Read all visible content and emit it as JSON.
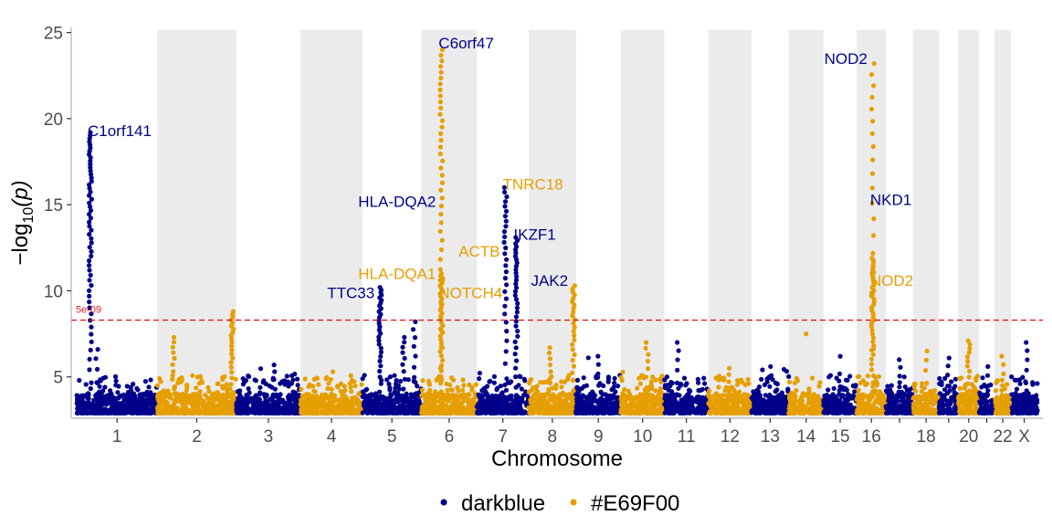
{
  "chart_data": {
    "type": "scatter",
    "title": "",
    "xlabel": "Chromosome",
    "ylabel_prefix": "−log",
    "ylabel_sub": "10",
    "ylabel_suffix": "(p)",
    "ylim": [
      2.6,
      25.3
    ],
    "yticks": [
      5,
      10,
      15,
      20,
      25
    ],
    "colors": {
      "darkblue": "#00008B",
      "orange": "#E69F00",
      "threshold": "#E41A1C",
      "shade": "#EBEBEB",
      "axis": "#B3B3B3"
    },
    "threshold": {
      "value": 8.3,
      "label": "5e-09"
    },
    "chromosomes": [
      {
        "label": "1",
        "len": 248,
        "color": "darkblue",
        "shaded": false,
        "peaks": [
          {
            "x": 0.17,
            "y": 19.2,
            "n": 55
          },
          {
            "x": 0.25,
            "y": 6.6,
            "n": 5
          }
        ]
      },
      {
        "label": "2",
        "len": 242,
        "color": "orange",
        "shaded": true,
        "peaks": [
          {
            "x": 0.2,
            "y": 7.3,
            "n": 10
          },
          {
            "x": 0.95,
            "y": 8.8,
            "n": 22
          }
        ]
      },
      {
        "label": "3",
        "len": 198,
        "color": "darkblue",
        "shaded": false,
        "peaks": [
          {
            "x": 0.6,
            "y": 5.7,
            "n": 5
          }
        ]
      },
      {
        "label": "4",
        "len": 190,
        "color": "orange",
        "shaded": true,
        "peaks": [
          {
            "x": 0.5,
            "y": 5.3,
            "n": 4
          }
        ]
      },
      {
        "label": "5",
        "len": 181,
        "color": "darkblue",
        "shaded": false,
        "peaks": [
          {
            "x": 0.3,
            "y": 10.2,
            "n": 30
          },
          {
            "x": 0.7,
            "y": 7.3,
            "n": 10
          },
          {
            "x": 0.88,
            "y": 8.2,
            "n": 8
          }
        ]
      },
      {
        "label": "6",
        "len": 171,
        "color": "orange",
        "shaded": true,
        "peaks": [
          {
            "x": 0.36,
            "y": 11.0,
            "n": 35
          },
          {
            "x": 0.36,
            "y": 24.0,
            "n": 40
          }
        ]
      },
      {
        "label": "7",
        "len": 159,
        "color": "darkblue",
        "shaded": false,
        "peaks": [
          {
            "x": 0.55,
            "y": 16.0,
            "n": 30
          },
          {
            "x": 0.76,
            "y": 13.1,
            "n": 35
          }
        ]
      },
      {
        "label": "8",
        "len": 145,
        "color": "orange",
        "shaded": true,
        "peaks": [
          {
            "x": 0.95,
            "y": 10.3,
            "n": 25
          },
          {
            "x": 0.45,
            "y": 6.7,
            "n": 8
          }
        ]
      },
      {
        "label": "9",
        "len": 138,
        "color": "darkblue",
        "shaded": false,
        "peaks": [
          {
            "x": 0.5,
            "y": 6.2,
            "n": 5
          }
        ]
      },
      {
        "label": "10",
        "len": 134,
        "color": "orange",
        "shaded": true,
        "peaks": [
          {
            "x": 0.6,
            "y": 7.0,
            "n": 8
          }
        ]
      },
      {
        "label": "11",
        "len": 135,
        "color": "darkblue",
        "shaded": false,
        "peaks": [
          {
            "x": 0.3,
            "y": 7.0,
            "n": 6
          }
        ]
      },
      {
        "label": "12",
        "len": 133,
        "color": "orange",
        "shaded": true,
        "peaks": [
          {
            "x": 0.5,
            "y": 5.5,
            "n": 5
          }
        ]
      },
      {
        "label": "13",
        "len": 114,
        "color": "darkblue",
        "shaded": false,
        "peaks": [
          {
            "x": 0.5,
            "y": 5.6,
            "n": 4
          }
        ]
      },
      {
        "label": "14",
        "len": 107,
        "color": "orange",
        "shaded": true,
        "peaks": [
          {
            "x": 0.5,
            "y": 7.5,
            "n": 2
          }
        ]
      },
      {
        "label": "15",
        "len": 102,
        "color": "darkblue",
        "shaded": false,
        "peaks": [
          {
            "x": 0.5,
            "y": 6.2,
            "n": 3
          }
        ]
      },
      {
        "label": "16",
        "len": 90,
        "color": "orange",
        "shaded": true,
        "peaks": [
          {
            "x": 0.55,
            "y": 11.9,
            "n": 40
          },
          {
            "x": 0.55,
            "y": 23.2,
            "n": 20
          }
        ]
      },
      {
        "label": "",
        "len": 83,
        "color": "darkblue",
        "shaded": false,
        "peaks": [
          {
            "x": 0.5,
            "y": 6.0,
            "n": 5
          }
        ]
      },
      {
        "label": "18",
        "len": 80,
        "color": "orange",
        "shaded": true,
        "peaks": [
          {
            "x": 0.5,
            "y": 6.5,
            "n": 5
          }
        ]
      },
      {
        "label": "",
        "len": 59,
        "color": "darkblue",
        "shaded": false,
        "peaks": [
          {
            "x": 0.5,
            "y": 6.1,
            "n": 5
          }
        ]
      },
      {
        "label": "20",
        "len": 64,
        "color": "orange",
        "shaded": true,
        "peaks": [
          {
            "x": 0.5,
            "y": 7.1,
            "n": 12
          }
        ]
      },
      {
        "label": "",
        "len": 47,
        "color": "darkblue",
        "shaded": false,
        "peaks": [
          {
            "x": 0.5,
            "y": 5.6,
            "n": 4
          }
        ]
      },
      {
        "label": "22",
        "len": 51,
        "color": "orange",
        "shaded": true,
        "peaks": [
          {
            "x": 0.5,
            "y": 6.2,
            "n": 5
          }
        ]
      },
      {
        "label": "X",
        "len": 81,
        "color": "darkblue",
        "shaded": false,
        "peaks": [
          {
            "x": 0.6,
            "y": 7.0,
            "n": 6
          }
        ]
      }
    ],
    "annotations": [
      {
        "text": "C1orf141",
        "color": "darkblue",
        "chr": 0,
        "pos": 0.17,
        "y": 19.3,
        "anchor": "start"
      },
      {
        "text": "C6orf47",
        "color": "darkblue",
        "chr": 5,
        "pos": 0.36,
        "y": 24.4,
        "anchor": "start"
      },
      {
        "text": "NOD2",
        "color": "darkblue",
        "chr": 15,
        "pos": 0.55,
        "y": 23.5,
        "anchor": "end"
      },
      {
        "text": "TNRC18",
        "color": "orange",
        "chr": 6,
        "pos": 0.55,
        "y": 16.2,
        "anchor": "start"
      },
      {
        "text": "HLA-DQA2",
        "color": "darkblue",
        "chr": 5,
        "pos": 0.36,
        "y": 15.2,
        "anchor": "end"
      },
      {
        "text": "NKD1",
        "color": "darkblue",
        "chr": 15,
        "pos": 0.55,
        "y": 15.3,
        "anchor": "start"
      },
      {
        "text": "IKZF1",
        "color": "darkblue",
        "chr": 6,
        "pos": 0.76,
        "y": 13.3,
        "anchor": "start"
      },
      {
        "text": "ACTB",
        "color": "orange",
        "chr": 6,
        "pos": 0.55,
        "y": 12.3,
        "anchor": "end"
      },
      {
        "text": "HLA-DQA1",
        "color": "orange",
        "chr": 5,
        "pos": 0.36,
        "y": 11.0,
        "anchor": "end"
      },
      {
        "text": "JAK2",
        "color": "darkblue",
        "chr": 7,
        "pos": 0.95,
        "y": 10.6,
        "anchor": "end"
      },
      {
        "text": "NOD2",
        "color": "orange",
        "chr": 15,
        "pos": 0.55,
        "y": 10.6,
        "anchor": "start"
      },
      {
        "text": "TTC33",
        "color": "darkblue",
        "chr": 4,
        "pos": 0.3,
        "y": 9.9,
        "anchor": "end"
      },
      {
        "text": "NOTCH4",
        "color": "orange",
        "chr": 5,
        "pos": 0.36,
        "y": 9.9,
        "anchor": "start"
      }
    ],
    "legend": {
      "position": "bottom",
      "entries": [
        {
          "label": "darkblue",
          "color": "#00008B"
        },
        {
          "label": "#E69F00",
          "color": "#E69F00"
        }
      ]
    },
    "grid": false
  }
}
